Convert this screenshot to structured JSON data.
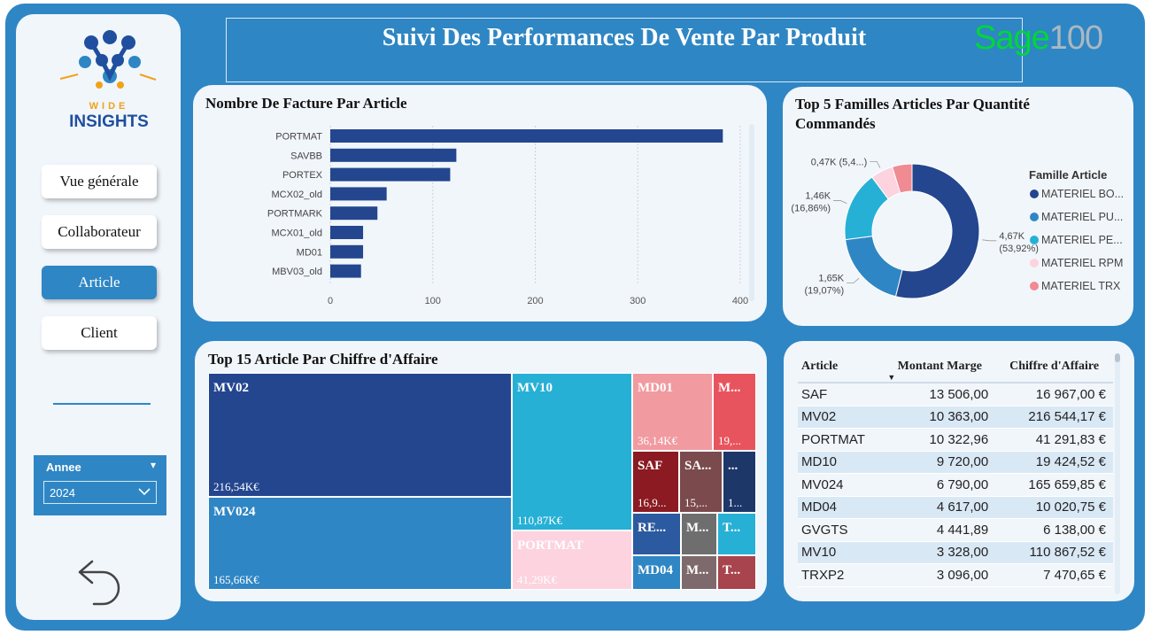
{
  "header": {
    "title": "Suivi Des Performances De Vente Par Produit",
    "sage_logo_main": "Sage",
    "sage_logo_num": "100"
  },
  "sidebar": {
    "logo_line1": "WIDE",
    "logo_line2": "INSIGHTS",
    "nav": [
      {
        "label": "Vue générale",
        "active": false
      },
      {
        "label": "Collaborateur",
        "active": false
      },
      {
        "label": "Article",
        "active": true
      },
      {
        "label": "Client",
        "active": false
      }
    ],
    "year_slicer": {
      "title": "Annee",
      "value": "2024"
    }
  },
  "bar_chart": {
    "title": "Nombre De Facture Par Article",
    "chart_data": {
      "type": "bar",
      "orientation": "horizontal",
      "categories": [
        "PORTMAT",
        "SAVBB",
        "PORTEX",
        "MCX02_old",
        "PORTMARK",
        "MCX01_old",
        "MD01",
        "MBV03_old"
      ],
      "values": [
        383,
        123,
        117,
        55,
        46,
        32,
        32,
        30
      ],
      "xlim": [
        0,
        400
      ],
      "xticks": [
        "0",
        "100",
        "200",
        "300",
        "400"
      ],
      "grid": true,
      "color": "#24468f"
    }
  },
  "donut_chart": {
    "title": "Top 5 Familles Articles Par Quantité Commandés",
    "legend_title": "Famille Article",
    "chart_data": {
      "type": "pie",
      "donut": true,
      "slices": [
        {
          "name": "MATERIEL BO...",
          "value": 53.92,
          "label": "4,67K",
          "pct": "(53,92%)",
          "color": "#24468f"
        },
        {
          "name": "MATERIEL PU...",
          "value": 19.07,
          "label": "1,65K",
          "pct": "(19,07%)",
          "color": "#2f86c4"
        },
        {
          "name": "MATERIEL PE...",
          "value": 16.86,
          "label": "1,46K",
          "pct": "(16,86%)",
          "color": "#27b0d5"
        },
        {
          "name": "MATERIEL RPM",
          "value": 5.4,
          "label": "0,47K (5,4...)",
          "pct": "",
          "color": "#fcd3de"
        },
        {
          "name": "MATERIEL TRX",
          "value": 4.75,
          "label": "",
          "pct": "",
          "color": "#f08a93"
        }
      ]
    }
  },
  "treemap": {
    "title": "Top 15 Article Par Chiffre d'Affaire",
    "chart_data": {
      "type": "treemap",
      "items": [
        {
          "name": "MV02",
          "value": "216,54K€",
          "color": "#24468f"
        },
        {
          "name": "MV024",
          "value": "165,66K€",
          "color": "#2f86c4"
        },
        {
          "name": "MV10",
          "value": "110,87K€",
          "color": "#27b0d5"
        },
        {
          "name": "PORTMAT",
          "value": "41,29K€",
          "color": "#fcd3de"
        },
        {
          "name": "MD01",
          "value": "36,14K€",
          "color": "#f19aa0"
        },
        {
          "name": "M...",
          "value": "19,...",
          "color": "#e8545e"
        },
        {
          "name": "SAF",
          "value": "16,9...",
          "color": "#8b1a22"
        },
        {
          "name": "SA...",
          "value": "15,...",
          "color": "#7b4a4d"
        },
        {
          "name": "...",
          "value": "1...",
          "color": "#1e3769"
        },
        {
          "name": "RE...",
          "value": "",
          "color": "#2c5aa0"
        },
        {
          "name": "M...",
          "value": "",
          "color": "#6e6e6e"
        },
        {
          "name": "T...",
          "value": "",
          "color": "#27b0d5"
        },
        {
          "name": "MD04",
          "value": "",
          "color": "#2f86c4"
        },
        {
          "name": "M...",
          "value": "",
          "color": "#7e6a6c"
        },
        {
          "name": "T...",
          "value": "",
          "color": "#a8444d"
        }
      ]
    }
  },
  "table": {
    "columns": [
      "Article",
      "Montant Marge",
      "Chiffre d'Affaire"
    ],
    "rows": [
      [
        "SAF",
        "13 506,00",
        "16 967,00 €"
      ],
      [
        "MV02",
        "10 363,00",
        "216 544,17 €"
      ],
      [
        "PORTMAT",
        "10 322,96",
        "41 291,83 €"
      ],
      [
        "MD10",
        "9 720,00",
        "19 424,52 €"
      ],
      [
        "MV024",
        "6 790,00",
        "165 659,85 €"
      ],
      [
        "MD04",
        "4 617,00",
        "10 020,75 €"
      ],
      [
        "GVGTS",
        "4 441,89",
        "6 138,00 €"
      ],
      [
        "MV10",
        "3 328,00",
        "110 867,52 €"
      ],
      [
        "TRXP2",
        "3 096,00",
        "7 470,65 €"
      ]
    ]
  }
}
